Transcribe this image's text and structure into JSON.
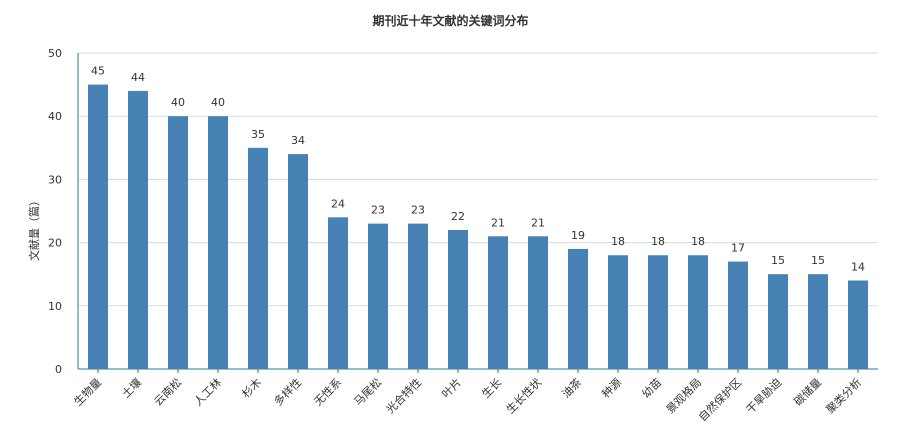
{
  "chart_data": {
    "type": "bar",
    "title": "期刊近十年文献的关键词分布",
    "xlabel": "",
    "ylabel": "文献量（篇）",
    "ylim": [
      0,
      50
    ],
    "yticks": [
      0,
      10,
      20,
      30,
      40,
      50
    ],
    "grid": true,
    "categories": [
      "生物量",
      "土壤",
      "云南松",
      "人工林",
      "杉木",
      "多样性",
      "无性系",
      "马尾松",
      "光合特性",
      "叶片",
      "生长",
      "生长性状",
      "油茶",
      "种源",
      "幼苗",
      "景观格局",
      "自然保护区",
      "干旱胁迫",
      "碳储量",
      "聚类分析"
    ],
    "values": [
      45,
      44,
      40,
      40,
      35,
      34,
      24,
      23,
      23,
      22,
      21,
      21,
      19,
      18,
      18,
      18,
      17,
      15,
      15,
      14
    ],
    "colors": {
      "bar": "#4682b4",
      "grid": "#d6dbe0",
      "axis": "#1f7f8f",
      "text": "#333333"
    }
  }
}
